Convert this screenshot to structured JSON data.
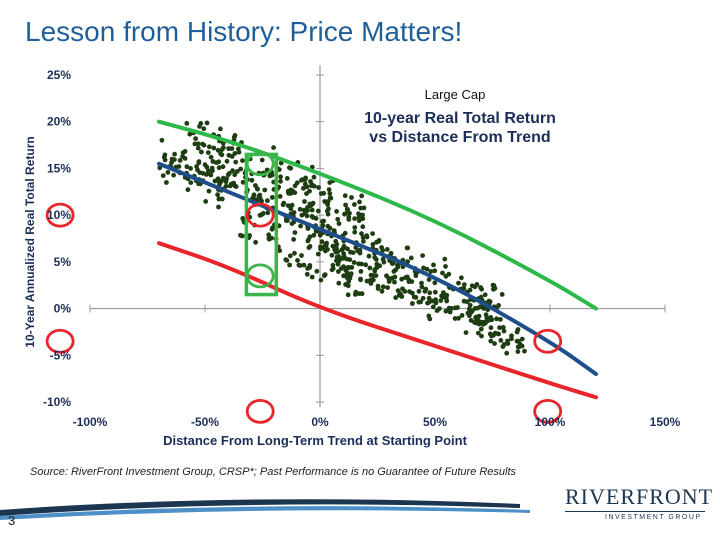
{
  "slide": {
    "title": "Lesson from History: Price Matters!",
    "source": "Source: RiverFront Investment Group, CRSP*; Past Performance is no Guarantee of Future Results",
    "page_number": "3"
  },
  "logo": {
    "name": "RIVERFRONT",
    "tagline": "INVESTMENT GROUP"
  },
  "colors": {
    "title": "#1f5f99",
    "dots": "#1e3d12",
    "upper_band": "#2db84a",
    "trend": "#1f4e8c",
    "lower_band": "#e8252a",
    "highlight_green": "#39b54a",
    "highlight_red": "#e8252a"
  },
  "chart_data": {
    "type": "scatter",
    "title": "10-year Real Total Return vs Distance From Trend",
    "label": "Large Cap",
    "xlabel": "Distance From Long-Term Trend at Starting Point",
    "ylabel": "10-Year Annualized Real Total Return",
    "xlim": [
      -100,
      150
    ],
    "ylim": [
      -10,
      25
    ],
    "xticks": [
      "-100%",
      "-50%",
      "0%",
      "50%",
      "100%",
      "150%"
    ],
    "yticks": [
      "25%",
      "20%",
      "15%",
      "10%",
      "5%",
      "0%",
      "-5%",
      "-10%"
    ],
    "scatter_clusters": [
      {
        "x_range": [
          -60,
          20
        ],
        "y_center": 14,
        "y_spread": 4,
        "count": 170
      },
      {
        "x_range": [
          -70,
          80
        ],
        "y_center": 8,
        "y_spread": 3.5,
        "count": 320
      },
      {
        "x_range": [
          0,
          90
        ],
        "y_center": 1,
        "y_spread": 2.5,
        "count": 150
      },
      {
        "x_range": [
          -35,
          20
        ],
        "y_center": 5,
        "y_spread": 3,
        "count": 60
      }
    ],
    "series": [
      {
        "name": "Upper band",
        "x": [
          -70,
          -40,
          0,
          50,
          100,
          120
        ],
        "y": [
          20,
          18,
          14.5,
          9.5,
          3,
          0
        ]
      },
      {
        "name": "Trend",
        "x": [
          -70,
          -40,
          0,
          50,
          100,
          120
        ],
        "y": [
          15.5,
          12.5,
          8.5,
          3.5,
          -3.5,
          -7
        ]
      },
      {
        "name": "Lower band",
        "x": [
          -70,
          -40,
          0,
          50,
          100,
          120
        ],
        "y": [
          7,
          4.5,
          0,
          -4,
          -8,
          -9.5
        ]
      }
    ],
    "highlights": [
      {
        "type": "rect",
        "color": "green",
        "x": [
          -32,
          -19
        ],
        "y": [
          1.5,
          16.5
        ]
      },
      {
        "type": "ellipse",
        "color": "green",
        "x": -26,
        "y": 15.5
      },
      {
        "type": "ellipse",
        "color": "red",
        "x": -26,
        "y": 10
      },
      {
        "type": "ellipse",
        "color": "green",
        "x": -26,
        "y": 3.5
      },
      {
        "type": "ellipse",
        "color": "red",
        "x": -26,
        "y": -11
      },
      {
        "type": "ellipse",
        "color": "red",
        "x": -113,
        "y": 10
      },
      {
        "type": "ellipse",
        "color": "red",
        "x": -113,
        "y": -3.5
      },
      {
        "type": "ellipse",
        "color": "red",
        "x": 99,
        "y": -3.5
      },
      {
        "type": "ellipse",
        "color": "red",
        "x": 99,
        "y": -11
      }
    ]
  }
}
